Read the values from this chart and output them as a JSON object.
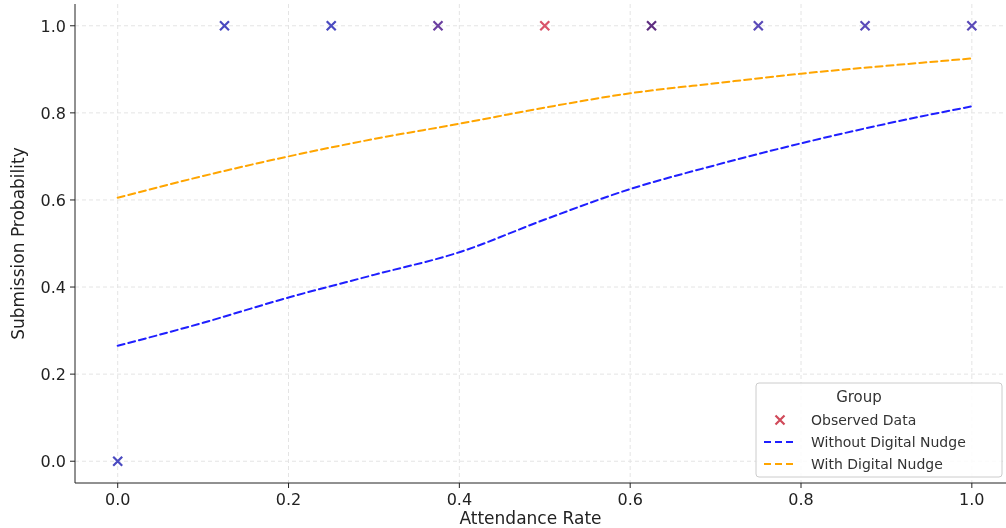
{
  "chart_data": {
    "type": "line",
    "xlabel": "Attendance Rate",
    "ylabel": "Submission Probability",
    "legend_title": "Group",
    "legend": "bottom right",
    "grid": true,
    "xlim": [
      -0.05,
      1.04
    ],
    "ylim": [
      -0.05,
      1.05
    ],
    "xticks": [
      {
        "value": 0,
        "label": "0.0"
      },
      {
        "value": 0.2,
        "label": "0.2"
      },
      {
        "value": 0.4,
        "label": "0.4"
      },
      {
        "value": 0.6,
        "label": "0.6"
      },
      {
        "value": 0.8,
        "label": "0.8"
      },
      {
        "value": 1,
        "label": "1.0"
      }
    ],
    "yticks": [
      {
        "value": 0,
        "label": "0.0"
      },
      {
        "value": 0.2,
        "label": "0.2"
      },
      {
        "value": 0.4,
        "label": "0.4"
      },
      {
        "value": 0.6,
        "label": "0.6"
      },
      {
        "value": 0.8,
        "label": "0.8"
      },
      {
        "value": 1,
        "label": "1.0"
      }
    ],
    "series": [
      {
        "name": "Observed Data",
        "type": "scatter",
        "marker": "cross",
        "color": "#d04a5a",
        "x": [
          0,
          0.125,
          0.25,
          0.375,
          0.5,
          0.625,
          0.75,
          0.875,
          1
        ],
        "values": [
          0,
          1,
          1,
          1,
          1,
          1,
          1,
          1,
          1
        ],
        "colors": [
          "#4a4ac0",
          "#4a4ac0",
          "#4a4ac0",
          "#6b3fa0",
          "#d9546a",
          "#5e2e80",
          "#5a4ab8",
          "#5a4ab8",
          "#5a4ab8"
        ]
      },
      {
        "name": "Without Digital Nudge",
        "line_style": "dashed",
        "marker": "none",
        "color": "#1f1fff",
        "x": [
          0,
          0.1,
          0.2,
          0.3,
          0.4,
          0.5,
          0.6,
          0.7,
          0.8,
          0.9,
          1
        ],
        "values": [
          0.265,
          0.318,
          0.376,
          0.428,
          0.48,
          0.555,
          0.625,
          0.68,
          0.73,
          0.775,
          0.815
        ]
      },
      {
        "name": "With Digital Nudge",
        "line_style": "dashed",
        "marker": "none",
        "color": "#ffa500",
        "x": [
          0,
          0.1,
          0.2,
          0.3,
          0.4,
          0.5,
          0.6,
          0.7,
          0.8,
          0.9,
          1
        ],
        "values": [
          0.605,
          0.655,
          0.7,
          0.74,
          0.775,
          0.812,
          0.845,
          0.868,
          0.89,
          0.908,
          0.925
        ]
      }
    ]
  }
}
